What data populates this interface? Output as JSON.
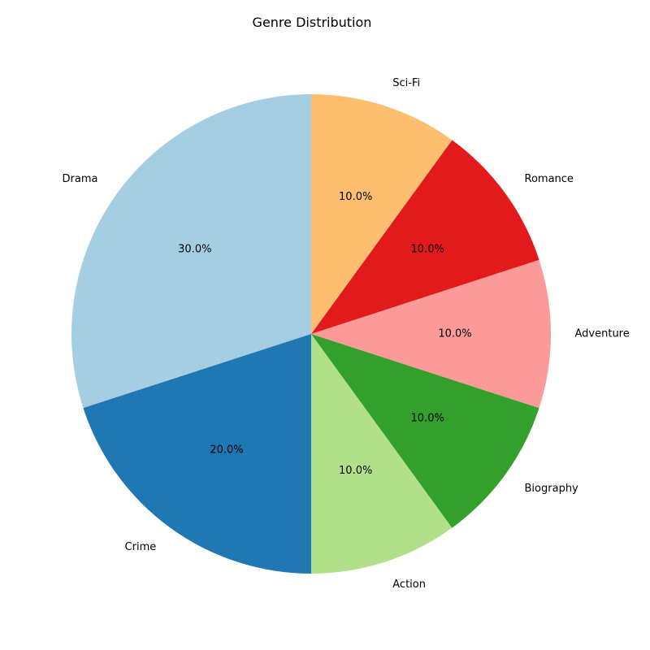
{
  "chart_data": {
    "type": "pie",
    "title": "Genre Distribution",
    "start_angle_deg": 90,
    "direction": "counterclockwise",
    "categories": [
      "Drama",
      "Crime",
      "Action",
      "Biography",
      "Adventure",
      "Romance",
      "Sci-Fi"
    ],
    "values": [
      30,
      20,
      10,
      10,
      10,
      10,
      10
    ],
    "percent_labels": [
      "30.0%",
      "20.0%",
      "10.0%",
      "10.0%",
      "10.0%",
      "10.0%",
      "10.0%"
    ],
    "colors": [
      "#a6cee3",
      "#1f78b4",
      "#b2df8a",
      "#33a02c",
      "#fb9a99",
      "#e31a1c",
      "#fdbf6f"
    ],
    "legend": "none"
  }
}
